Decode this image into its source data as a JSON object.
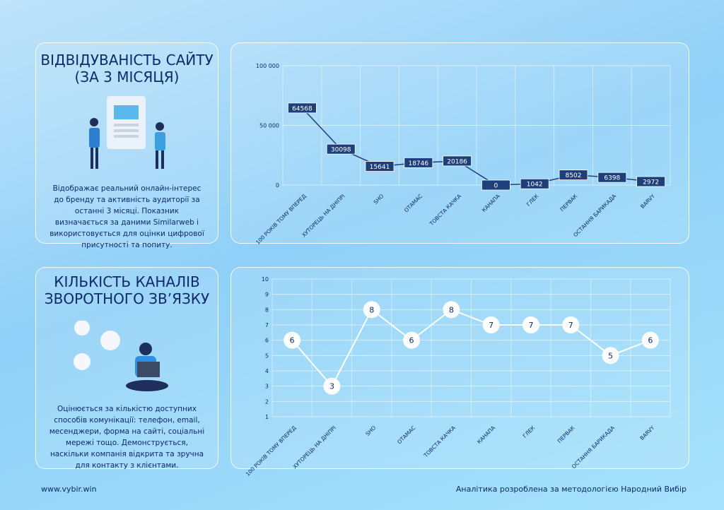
{
  "panels": [
    {
      "title": "ВІДВІДУВАНІСТЬ САЙТУ (ЗА 3 МІСЯЦЯ)",
      "description": "Відображає реальний онлайн-інтерес до бренду та активність аудиторії за останні 3 місяці. Показник визначається за даними Similarweb і використовується для оцінки цифрової присутності та попиту."
    },
    {
      "title": "КІЛЬКІСТЬ КАНАЛІВ ЗВОРОТНОГО ЗВ’ЯЗКУ",
      "description": "Оцінюється за кількістю доступних способів комунікації: телефон, email, месенджери, форма на сайті, соціальні мережі тощо. Демонструється, наскільки компанія відкрита та зручна для контакту з клієнтами."
    }
  ],
  "footer": {
    "site": "www.vybir.win",
    "note": "Аналітика розроблена за методологією  Народний Вибір"
  },
  "chart_data": [
    {
      "type": "line",
      "categories": [
        "100 РОКІВ ТОМУ ВПЕРЕД",
        "ХУТОРЕЦЬ НА ДНІПРІ",
        "SHO",
        "ОТАМАС",
        "ТОВСТА КАЧКА",
        "КАНАПА",
        "ГЛЕК",
        "ПЕРВАК",
        "ОСТАННЯ БАРИКАДА",
        "BARVY"
      ],
      "series": [
        {
          "color": "#1d3f7a",
          "values": [
            64568,
            30098,
            15641,
            18746,
            20186,
            0,
            1042,
            8502,
            6398,
            2972
          ]
        }
      ],
      "ylim": [
        0,
        100000
      ],
      "yticks": [
        0,
        {
          "value": 50000,
          "label": "50 000"
        },
        {
          "value": 100000,
          "label": "100 000"
        }
      ],
      "grid": true
    },
    {
      "type": "line",
      "categories": [
        "100 РОКІВ ТОМУ ВПЕРЕД",
        "ХУТОРЕЦЬ НА ДНІПРІ",
        "SHO",
        "ОТАМАС",
        "ТОВСТА КАЧКА",
        "КАНАПА",
        "ГЛЕК",
        "ПЕРВАК",
        "ОСТАННЯ БАРИКАДА",
        "BARVY"
      ],
      "series": [
        {
          "color": "#ffffff",
          "values": [
            6,
            3,
            8,
            6,
            8,
            7,
            7,
            7,
            5,
            6
          ]
        }
      ],
      "ylim": [
        1,
        10
      ],
      "yticks": [
        1,
        2,
        3,
        4,
        5,
        6,
        7,
        8,
        9,
        10
      ],
      "grid": true
    }
  ]
}
